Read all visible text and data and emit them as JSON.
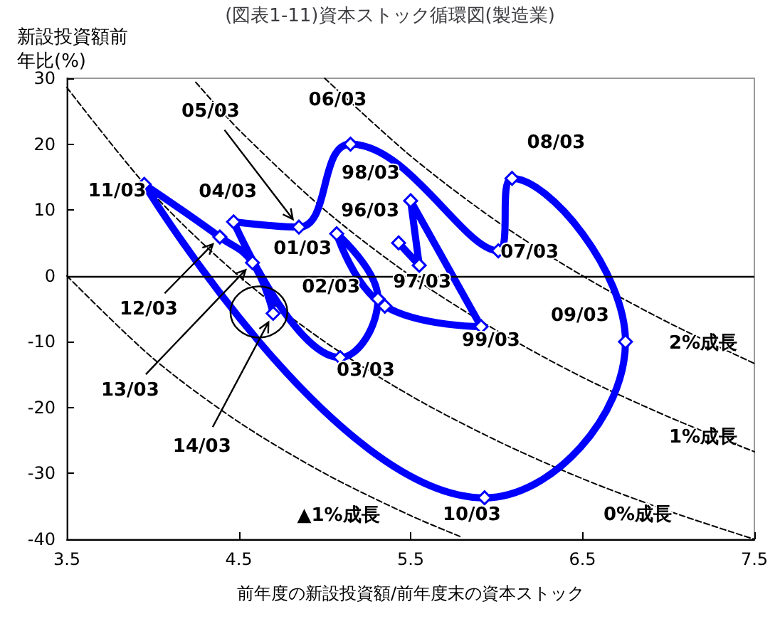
{
  "chart_data": {
    "type": "line",
    "title": "(図表1-11)資本ストック循環図(製造業)",
    "xlabel": "前年度の新設投資額/前年度末の資本ストック",
    "ylabel": "新設投資額前年比(%)",
    "xlim": [
      3.5,
      7.5
    ],
    "xticks": [
      3.5,
      4.5,
      5.5,
      6.5,
      7.5
    ],
    "ylim": [
      -40,
      30
    ],
    "yticks": [
      -40,
      -30,
      -20,
      -10,
      0,
      10,
      20,
      30
    ],
    "ref_lines": [
      {
        "axis": "y",
        "value": 0,
        "color": "#000000"
      }
    ],
    "series": [
      {
        "color": "#0000ff",
        "marker": "diamond",
        "line_style": "solid",
        "x": [
          5.43,
          5.55,
          5.5,
          5.91,
          5.35,
          5.07,
          5.31,
          5.09,
          4.47,
          4.85,
          5.15,
          6.01,
          6.09,
          6.75,
          5.93,
          3.95,
          4.39,
          4.58,
          4.7
        ],
        "values": [
          5.0,
          1.6,
          11.4,
          -7.7,
          -4.6,
          6.4,
          -3.5,
          -12.4,
          8.2,
          7.4,
          20.0,
          3.8,
          14.8,
          -10.0,
          -33.7,
          13.9,
          5.9,
          2.0,
          -5.7
        ]
      },
      {
        "name": "▲1%成長",
        "color": "#000000",
        "marker": "none",
        "line_style": "dashed",
        "x": [
          3.5,
          4,
          4.5,
          5,
          5.5,
          5.8
        ],
        "values": [
          0,
          -12.5,
          -22.2,
          -30,
          -36.4,
          -39.7
        ]
      },
      {
        "name": "0%成長",
        "color": "#000000",
        "marker": "none",
        "line_style": "dashed",
        "x": [
          3.5,
          4,
          4.5,
          5,
          5.5,
          6,
          6.5,
          7,
          7.5
        ],
        "values": [
          28.6,
          12.5,
          0,
          -10,
          -18.2,
          -25,
          -30.8,
          -35.7,
          -40
        ]
      },
      {
        "name": "1%成長",
        "color": "#000000",
        "marker": "none",
        "line_style": "dashed",
        "x": [
          4.25,
          4.5,
          5,
          5.5,
          6,
          6.5,
          7,
          7.5
        ],
        "values": [
          29.4,
          22.2,
          10,
          0,
          -8.3,
          -15.4,
          -21.4,
          -26.7
        ]
      },
      {
        "name": "2%成長",
        "color": "#000000",
        "marker": "none",
        "line_style": "dashed",
        "x": [
          5,
          5.5,
          6,
          6.5,
          7,
          7.5
        ],
        "values": [
          30,
          18.2,
          8.3,
          0,
          -7.1,
          -13.3
        ]
      }
    ],
    "annotations": [
      {
        "text": "96/03",
        "x": 5.43,
        "y": 5.0
      },
      {
        "text": "97/03",
        "x": 5.55,
        "y": 1.6
      },
      {
        "text": "98/03",
        "x": 5.5,
        "y": 11.4
      },
      {
        "text": "99/03",
        "x": 5.91,
        "y": -7.7
      },
      {
        "text": "01/03",
        "x": 5.07,
        "y": 6.4
      },
      {
        "text": "02/03",
        "x": 5.31,
        "y": -3.5
      },
      {
        "text": "03/03",
        "x": 5.09,
        "y": -12.4
      },
      {
        "text": "04/03",
        "x": 4.47,
        "y": 8.2
      },
      {
        "text": "05/03",
        "x": 4.85,
        "y": 7.4
      },
      {
        "text": "06/03",
        "x": 5.15,
        "y": 20.0
      },
      {
        "text": "07/03",
        "x": 6.01,
        "y": 3.8
      },
      {
        "text": "08/03",
        "x": 6.09,
        "y": 14.8
      },
      {
        "text": "09/03",
        "x": 6.75,
        "y": -10.0
      },
      {
        "text": "10/03",
        "x": 5.93,
        "y": -33.7
      },
      {
        "text": "11/03",
        "x": 3.95,
        "y": 13.9
      },
      {
        "text": "12/03",
        "x": 4.39,
        "y": 5.9
      },
      {
        "text": "13/03",
        "x": 4.58,
        "y": 2.0
      },
      {
        "text": "14/03",
        "x": 4.7,
        "y": -5.7
      }
    ]
  }
}
